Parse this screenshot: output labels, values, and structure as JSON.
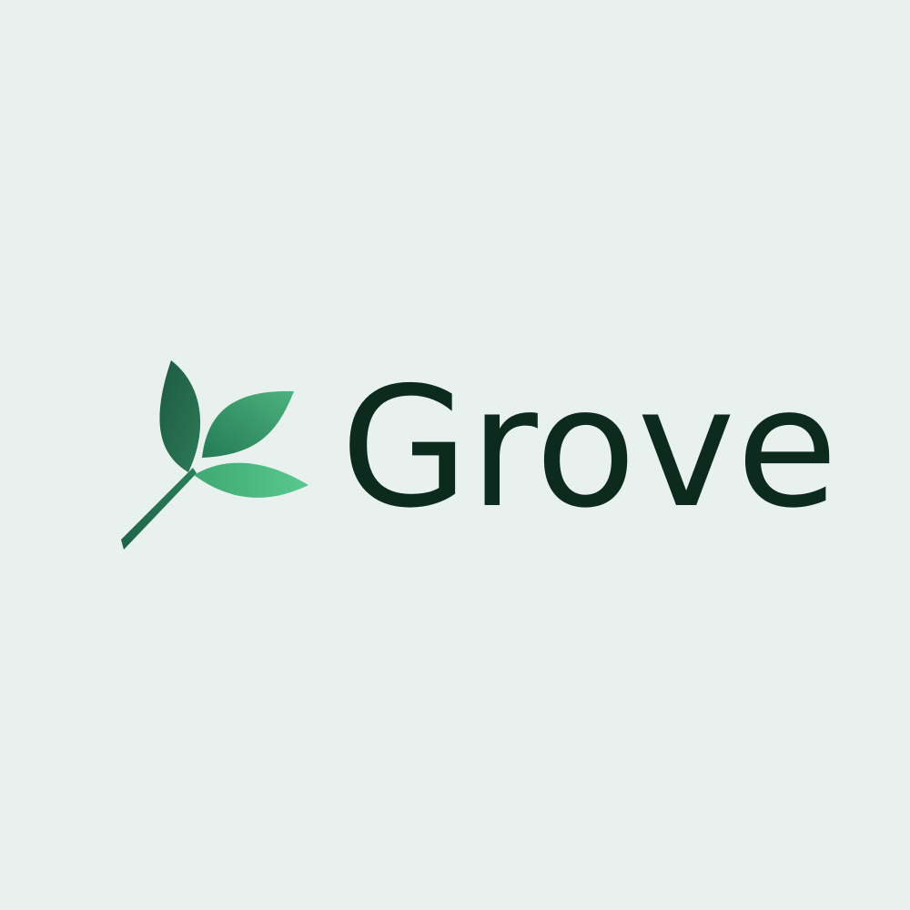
{
  "logo": {
    "wordmark": "Grove",
    "icon": "leaf-sprig-icon"
  },
  "colors": {
    "background": "#E8F1EE",
    "text": "#0D2A1E",
    "leaf_dark": "#1E5A43",
    "leaf_mid": "#2F8A62",
    "leaf_light": "#56C68D"
  }
}
